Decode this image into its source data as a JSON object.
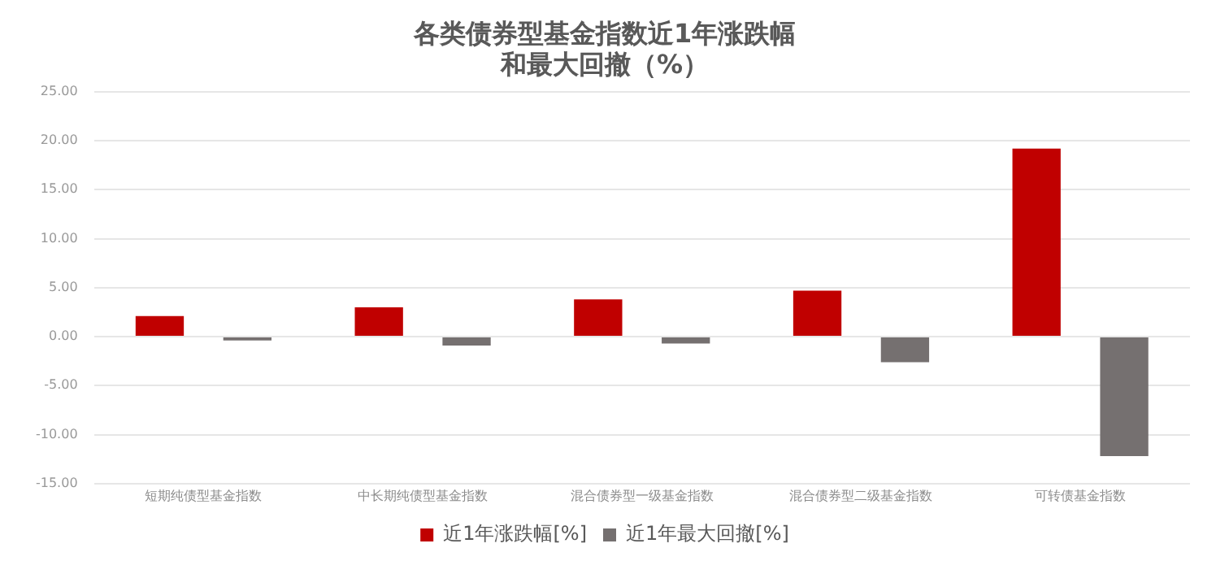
{
  "chart_data": {
    "type": "bar",
    "title": [
      "各类债券型基金指数近1年涨跌幅",
      "和最大回撤（%）"
    ],
    "categories": [
      "短期纯债型基金指数",
      "中长期纯债型基金指数",
      "混合债券型一级基金指数",
      "混合债券型二级基金指数",
      "可转债基金指数"
    ],
    "series": [
      {
        "name": "近1年涨跌幅[%]",
        "color": "#c00000",
        "values": [
          2.1,
          3.0,
          3.8,
          4.7,
          19.2
        ]
      },
      {
        "name": "近1年最大回撤[%]",
        "color": "#757070",
        "values": [
          -0.4,
          -0.9,
          -0.7,
          -2.6,
          -12.2
        ]
      }
    ],
    "ylim": [
      -15,
      25
    ],
    "yticks": [
      {
        "value": -15,
        "label": "-15.00"
      },
      {
        "value": -10,
        "label": "-10.00"
      },
      {
        "value": -5,
        "label": "-5.00"
      },
      {
        "value": 0,
        "label": "0.00"
      },
      {
        "value": 5,
        "label": "5.00"
      },
      {
        "value": 10,
        "label": "10.00"
      },
      {
        "value": 15,
        "label": "15.00"
      },
      {
        "value": 20,
        "label": "20.00"
      },
      {
        "value": 25,
        "label": "25.00"
      }
    ],
    "grid": "y",
    "legend": "bottom"
  }
}
